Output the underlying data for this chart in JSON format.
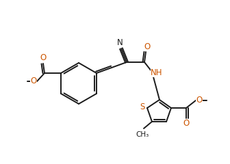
{
  "bg_color": "#ffffff",
  "bond_color": "#1a1a1a",
  "atom_colors": {
    "O": "#cc5500",
    "N": "#1a1a1a",
    "S": "#cc5500",
    "H": "#cc5500",
    "C": "#1a1a1a"
  },
  "figsize": [
    3.36,
    2.4
  ],
  "dpi": 100
}
